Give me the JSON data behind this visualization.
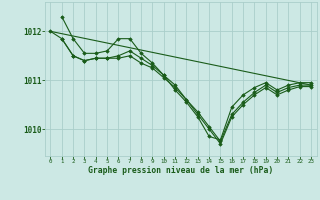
{
  "background_color": "#cce8e4",
  "grid_color": "#aaceca",
  "line_color": "#1a5c1a",
  "xlabel": "Graphe pression niveau de la mer (hPa)",
  "xlim": [
    -0.5,
    23.5
  ],
  "ylim": [
    1009.45,
    1012.6
  ],
  "yticks": [
    1010,
    1011,
    1012
  ],
  "xticks": [
    0,
    1,
    2,
    3,
    4,
    5,
    6,
    7,
    8,
    9,
    10,
    11,
    12,
    13,
    14,
    15,
    16,
    17,
    18,
    19,
    20,
    21,
    22,
    23
  ],
  "series": [
    {
      "x": [
        1,
        2,
        3,
        4,
        5,
        6,
        7,
        8,
        9,
        10,
        11,
        12,
        13,
        14,
        15,
        16,
        17,
        18,
        19,
        20,
        21,
        22,
        23
      ],
      "y": [
        1012.3,
        1011.85,
        1011.55,
        1011.55,
        1011.6,
        1011.85,
        1011.85,
        1011.55,
        1011.35,
        1011.1,
        1010.8,
        1010.55,
        1010.25,
        1009.85,
        1009.78,
        1010.45,
        1010.7,
        1010.85,
        1010.95,
        1010.8,
        1010.9,
        1010.95,
        1010.95
      ],
      "marker": true
    },
    {
      "x": [
        1,
        2,
        3,
        4,
        5,
        6,
        7,
        8,
        9,
        10,
        11,
        12,
        13,
        14,
        15,
        16,
        17,
        18,
        19,
        20,
        21,
        22,
        23
      ],
      "y": [
        1011.85,
        1011.5,
        1011.4,
        1011.45,
        1011.45,
        1011.5,
        1011.6,
        1011.45,
        1011.3,
        1011.1,
        1010.9,
        1010.6,
        1010.35,
        1010.05,
        1009.75,
        1010.3,
        1010.55,
        1010.75,
        1010.9,
        1010.75,
        1010.85,
        1010.9,
        1010.9
      ],
      "marker": true
    },
    {
      "x": [
        0,
        1,
        2,
        3,
        4,
        5,
        6,
        7,
        8,
        9,
        10,
        11,
        12,
        13,
        14,
        15,
        16,
        17,
        18,
        19,
        20,
        21,
        22,
        23
      ],
      "y": [
        1012.0,
        1011.85,
        1011.5,
        1011.4,
        1011.45,
        1011.45,
        1011.45,
        1011.5,
        1011.35,
        1011.25,
        1011.05,
        1010.85,
        1010.6,
        1010.3,
        1010.0,
        1009.7,
        1010.25,
        1010.5,
        1010.7,
        1010.85,
        1010.7,
        1010.8,
        1010.87,
        1010.87
      ],
      "marker": true
    },
    {
      "x": [
        0,
        23
      ],
      "y": [
        1012.0,
        1010.9
      ],
      "marker": false
    }
  ]
}
